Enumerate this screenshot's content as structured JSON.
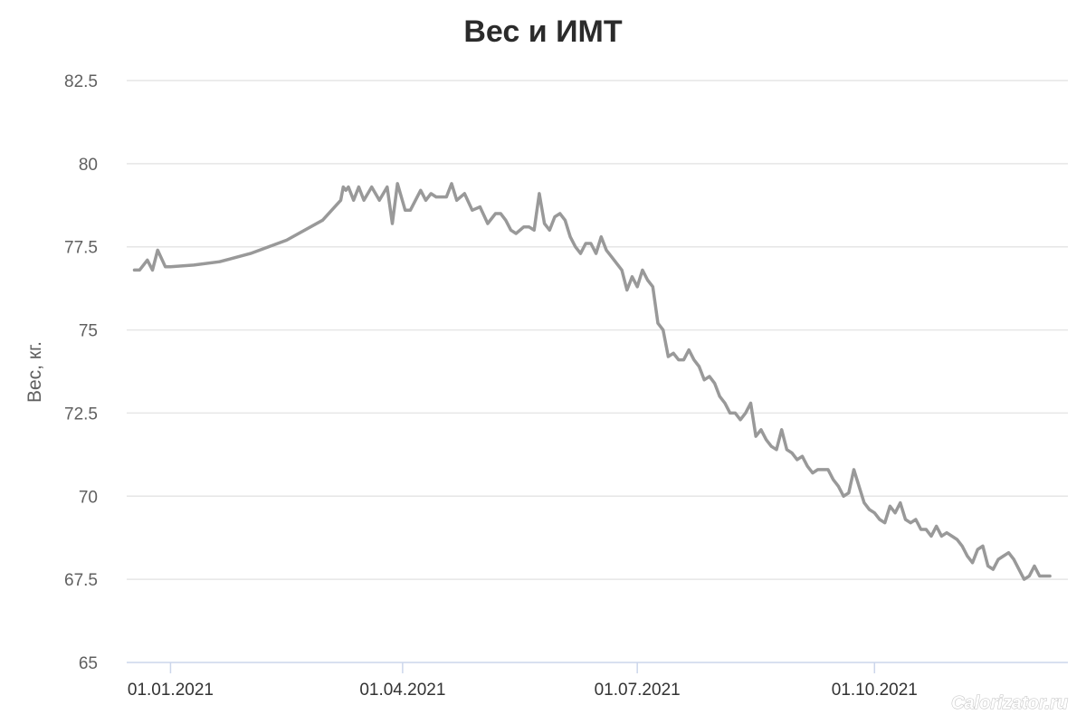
{
  "chart_data": {
    "type": "line",
    "title": "Вес и ИМТ",
    "ylabel": "Вес, кг.",
    "xlabel": "",
    "ylim": [
      65,
      82.5
    ],
    "xlim": [
      "2020-12-15",
      "2021-12-15"
    ],
    "y_ticks": [
      65,
      67.5,
      70,
      72.5,
      75,
      77.5,
      80,
      82.5
    ],
    "y_tick_labels": [
      "65",
      "67.5",
      "70",
      "72.5",
      "75",
      "77.5",
      "80",
      "82.5"
    ],
    "x_ticks": [
      "2021-01-01",
      "2021-04-01",
      "2021-07-01",
      "2021-10-01"
    ],
    "x_tick_labels": [
      "01.01.2021",
      "01.04.2021",
      "01.07.2021",
      "01.10.2021"
    ],
    "grid": true,
    "legend": "none",
    "line_color": "#999999",
    "series": [
      {
        "x": [
          "2020-12-18",
          "2020-12-20",
          "2020-12-23",
          "2020-12-25",
          "2020-12-27",
          "2020-12-30",
          "2021-01-01",
          "2021-01-10",
          "2021-01-20",
          "2021-02-01",
          "2021-02-15",
          "2021-03-01",
          "2021-03-08",
          "2021-03-09",
          "2021-03-10",
          "2021-03-11",
          "2021-03-13",
          "2021-03-15",
          "2021-03-17",
          "2021-03-20",
          "2021-03-23",
          "2021-03-26",
          "2021-03-28",
          "2021-03-30",
          "2021-04-02",
          "2021-04-04",
          "2021-04-06",
          "2021-04-08",
          "2021-04-10",
          "2021-04-12",
          "2021-04-14",
          "2021-04-16",
          "2021-04-18",
          "2021-04-20",
          "2021-04-22",
          "2021-04-25",
          "2021-04-28",
          "2021-05-01",
          "2021-05-04",
          "2021-05-07",
          "2021-05-09",
          "2021-05-11",
          "2021-05-13",
          "2021-05-15",
          "2021-05-18",
          "2021-05-20",
          "2021-05-22",
          "2021-05-24",
          "2021-05-26",
          "2021-05-28",
          "2021-05-30",
          "2021-06-01",
          "2021-06-03",
          "2021-06-05",
          "2021-06-07",
          "2021-06-09",
          "2021-06-11",
          "2021-06-13",
          "2021-06-15",
          "2021-06-17",
          "2021-06-19",
          "2021-06-21",
          "2021-06-23",
          "2021-06-25",
          "2021-06-27",
          "2021-06-29",
          "2021-07-01",
          "2021-07-03",
          "2021-07-05",
          "2021-07-07",
          "2021-07-09",
          "2021-07-11",
          "2021-07-13",
          "2021-07-15",
          "2021-07-17",
          "2021-07-19",
          "2021-07-21",
          "2021-07-23",
          "2021-07-25",
          "2021-07-27",
          "2021-07-29",
          "2021-07-31",
          "2021-08-02",
          "2021-08-04",
          "2021-08-06",
          "2021-08-08",
          "2021-08-10",
          "2021-08-12",
          "2021-08-14",
          "2021-08-16",
          "2021-08-18",
          "2021-08-20",
          "2021-08-22",
          "2021-08-24",
          "2021-08-26",
          "2021-08-28",
          "2021-08-30",
          "2021-09-01",
          "2021-09-03",
          "2021-09-05",
          "2021-09-07",
          "2021-09-09",
          "2021-09-11",
          "2021-09-13",
          "2021-09-15",
          "2021-09-17",
          "2021-09-19",
          "2021-09-21",
          "2021-09-23",
          "2021-09-25",
          "2021-09-27",
          "2021-09-29",
          "2021-10-01",
          "2021-10-03",
          "2021-10-05",
          "2021-10-07",
          "2021-10-09",
          "2021-10-11",
          "2021-10-13",
          "2021-10-15",
          "2021-10-17",
          "2021-10-19",
          "2021-10-21",
          "2021-10-23",
          "2021-10-25",
          "2021-10-27",
          "2021-10-29",
          "2021-10-31",
          "2021-11-02",
          "2021-11-04",
          "2021-11-06",
          "2021-11-08",
          "2021-11-10",
          "2021-11-12",
          "2021-11-14",
          "2021-11-16",
          "2021-11-18",
          "2021-11-20",
          "2021-11-22",
          "2021-11-24",
          "2021-11-26",
          "2021-11-28",
          "2021-11-30",
          "2021-12-02",
          "2021-12-04",
          "2021-12-06",
          "2021-12-08"
        ],
        "y": [
          76.8,
          76.8,
          77.1,
          76.8,
          77.4,
          76.9,
          76.9,
          76.95,
          77.05,
          77.3,
          77.7,
          78.3,
          78.9,
          79.3,
          79.2,
          79.3,
          78.9,
          79.3,
          78.9,
          79.3,
          78.9,
          79.3,
          78.2,
          79.4,
          78.6,
          78.6,
          78.9,
          79.2,
          78.9,
          79.1,
          79.0,
          79.0,
          79.0,
          79.4,
          78.9,
          79.1,
          78.6,
          78.7,
          78.2,
          78.5,
          78.5,
          78.3,
          78.0,
          77.9,
          78.1,
          78.1,
          78.0,
          79.1,
          78.2,
          78.0,
          78.4,
          78.5,
          78.3,
          77.8,
          77.5,
          77.3,
          77.6,
          77.6,
          77.3,
          77.8,
          77.4,
          77.2,
          77.0,
          76.8,
          76.2,
          76.6,
          76.3,
          76.8,
          76.5,
          76.3,
          75.2,
          75.0,
          74.2,
          74.3,
          74.1,
          74.1,
          74.4,
          74.1,
          73.9,
          73.5,
          73.6,
          73.4,
          73.0,
          72.8,
          72.5,
          72.5,
          72.3,
          72.5,
          72.8,
          71.8,
          72.0,
          71.7,
          71.5,
          71.4,
          72.0,
          71.4,
          71.3,
          71.1,
          71.2,
          70.9,
          70.7,
          70.8,
          70.8,
          70.8,
          70.5,
          70.3,
          70.0,
          70.1,
          70.8,
          70.3,
          69.8,
          69.6,
          69.5,
          69.3,
          69.2,
          69.7,
          69.5,
          69.8,
          69.3,
          69.2,
          69.3,
          69.0,
          69.0,
          68.8,
          69.1,
          68.8,
          68.9,
          68.8,
          68.7,
          68.5,
          68.2,
          68.0,
          68.4,
          68.5,
          67.9,
          67.8,
          68.1,
          68.2,
          68.3,
          68.1,
          67.8,
          67.5,
          67.6,
          67.9,
          67.6,
          67.6,
          67.6
        ]
      }
    ]
  },
  "watermark": "Calorizator.ru"
}
